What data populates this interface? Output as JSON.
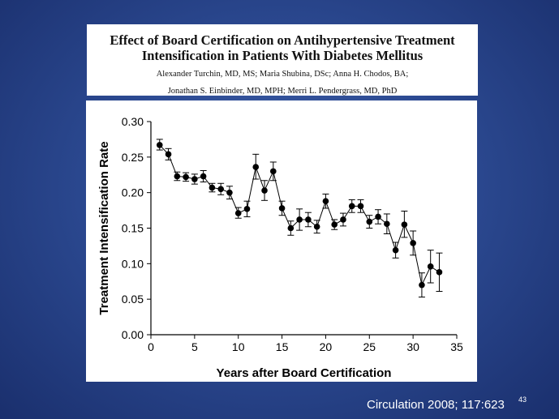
{
  "header": {
    "title_line1": "Effect of Board Certification on Antihypertensive Treatment",
    "title_line2": "Intensification in Patients With Diabetes Mellitus",
    "authors_line1": "Alexander Turchin, MD, MS; Maria Shubina, DSc; Anna H. Chodos, BA;",
    "authors_line2": "Jonathan S. Einbinder, MD, MPH; Merri L. Pendergrass, MD, PhD"
  },
  "footer": {
    "citation": "Circulation 2008; 117:623",
    "slide_number": "43"
  },
  "colors": {
    "background": "#2c4a92",
    "marker": "#000000"
  },
  "chart_data": {
    "type": "line",
    "title": "",
    "xlabel": "Years after Board Certification",
    "ylabel": "Treatment Intensification Rate",
    "xlim": [
      0,
      35
    ],
    "ylim": [
      0.0,
      0.3
    ],
    "xticks": [
      0,
      5,
      10,
      15,
      20,
      25,
      30,
      35
    ],
    "yticks": [
      "0.00",
      "0.05",
      "0.10",
      "0.15",
      "0.20",
      "0.25",
      "0.30"
    ],
    "grid": false,
    "series": [
      {
        "x": [
          1,
          2,
          3,
          4,
          5,
          6,
          7,
          8,
          9,
          10,
          11,
          12,
          13,
          14,
          15,
          16,
          17,
          18,
          19,
          20,
          21,
          22,
          23,
          24,
          25,
          26,
          27,
          28,
          29,
          30,
          31,
          32,
          33
        ],
        "values": [
          0.267,
          0.254,
          0.223,
          0.222,
          0.219,
          0.223,
          0.207,
          0.205,
          0.2,
          0.171,
          0.177,
          0.236,
          0.203,
          0.23,
          0.178,
          0.15,
          0.162,
          0.162,
          0.152,
          0.188,
          0.155,
          0.162,
          0.181,
          0.181,
          0.159,
          0.166,
          0.156,
          0.119,
          0.155,
          0.129,
          0.07,
          0.096,
          0.088
        ],
        "err_low": [
          0.26,
          0.246,
          0.217,
          0.216,
          0.212,
          0.215,
          0.201,
          0.197,
          0.191,
          0.164,
          0.166,
          0.219,
          0.189,
          0.217,
          0.168,
          0.14,
          0.147,
          0.152,
          0.143,
          0.178,
          0.148,
          0.153,
          0.172,
          0.172,
          0.15,
          0.156,
          0.142,
          0.108,
          0.137,
          0.112,
          0.053,
          0.073,
          0.061
        ],
        "err_high": [
          0.275,
          0.262,
          0.229,
          0.228,
          0.226,
          0.231,
          0.213,
          0.213,
          0.209,
          0.179,
          0.188,
          0.254,
          0.217,
          0.243,
          0.188,
          0.16,
          0.177,
          0.172,
          0.161,
          0.198,
          0.162,
          0.171,
          0.19,
          0.19,
          0.168,
          0.176,
          0.17,
          0.13,
          0.174,
          0.146,
          0.087,
          0.119,
          0.115
        ]
      }
    ]
  }
}
